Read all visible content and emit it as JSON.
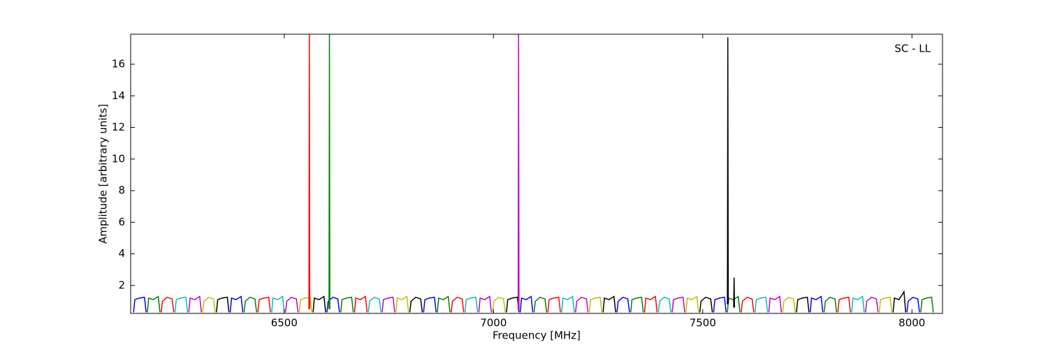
{
  "chart_data": {
    "type": "line",
    "annotation": "SC - LL",
    "xlabel": "Frequency [MHz]",
    "ylabel": "Amplitude [arbitrary units]",
    "xlim": [
      6133,
      8073
    ],
    "ylim": [
      0.23,
      17.9
    ],
    "xticks": [
      6500,
      7000,
      7500,
      8000
    ],
    "yticks": [
      2,
      4,
      6,
      8,
      10,
      12,
      14,
      16
    ],
    "series": [
      {
        "color": "#0000ff",
        "x": [
          6140,
          6143,
          6154,
          6166,
          6170
        ],
        "values": [
          0.3,
          1.1,
          1.2,
          1.25,
          0.3
        ]
      },
      {
        "color": "#008000",
        "x": [
          6173,
          6176,
          6187,
          6199,
          6203
        ],
        "values": [
          0.3,
          1.2,
          1.1,
          1.3,
          0.3
        ]
      },
      {
        "color": "#ff0000",
        "x": [
          6206,
          6209,
          6220,
          6232,
          6236
        ],
        "values": [
          0.3,
          1.0,
          1.25,
          1.15,
          0.3
        ]
      },
      {
        "color": "#00bfbf",
        "x": [
          6239,
          6242,
          6253,
          6265,
          6269
        ],
        "values": [
          0.3,
          1.1,
          1.2,
          1.25,
          0.3
        ]
      },
      {
        "color": "#bf00bf",
        "x": [
          6272,
          6275,
          6286,
          6298,
          6302
        ],
        "values": [
          0.3,
          1.2,
          1.1,
          1.3,
          0.3
        ]
      },
      {
        "color": "#bfbf00",
        "x": [
          6305,
          6308,
          6319,
          6331,
          6335
        ],
        "values": [
          0.3,
          1.0,
          1.25,
          1.15,
          0.3
        ]
      },
      {
        "color": "#000000",
        "x": [
          6338,
          6341,
          6352,
          6364,
          6368
        ],
        "values": [
          0.3,
          1.1,
          1.2,
          1.25,
          0.3
        ]
      },
      {
        "color": "#0000ff",
        "x": [
          6371,
          6374,
          6385,
          6397,
          6401
        ],
        "values": [
          0.3,
          1.2,
          1.1,
          1.3,
          0.3
        ]
      },
      {
        "color": "#008000",
        "x": [
          6404,
          6407,
          6418,
          6430,
          6434
        ],
        "values": [
          0.3,
          1.0,
          1.25,
          1.15,
          0.3
        ]
      },
      {
        "color": "#ff0000",
        "x": [
          6437,
          6440,
          6451,
          6463,
          6467
        ],
        "values": [
          0.3,
          1.1,
          1.2,
          1.25,
          0.3
        ]
      },
      {
        "color": "#00bfbf",
        "x": [
          6470,
          6473,
          6484,
          6496,
          6500
        ],
        "values": [
          0.3,
          1.2,
          1.1,
          1.3,
          0.3
        ]
      },
      {
        "color": "#bf00bf",
        "x": [
          6503,
          6506,
          6517,
          6529,
          6533
        ],
        "values": [
          0.3,
          1.0,
          1.25,
          1.15,
          0.3
        ]
      },
      {
        "color": "#bfbf00",
        "x": [
          6536,
          6539,
          6550,
          6562,
          6566
        ],
        "values": [
          0.3,
          1.1,
          1.2,
          1.25,
          0.3
        ]
      },
      {
        "color": "#000000",
        "x": [
          6569,
          6572,
          6583,
          6595,
          6599
        ],
        "values": [
          0.3,
          1.2,
          1.1,
          1.3,
          0.3
        ]
      },
      {
        "color": "#0000ff",
        "x": [
          6602,
          6605,
          6616,
          6628,
          6632
        ],
        "values": [
          0.3,
          1.0,
          1.25,
          1.15,
          0.3
        ]
      },
      {
        "color": "#008000",
        "x": [
          6635,
          6638,
          6649,
          6661,
          6665
        ],
        "values": [
          0.3,
          1.1,
          1.2,
          1.25,
          0.3
        ]
      },
      {
        "color": "#ff0000",
        "x": [
          6668,
          6671,
          6682,
          6694,
          6698
        ],
        "values": [
          0.3,
          1.2,
          1.1,
          1.3,
          0.3
        ]
      },
      {
        "color": "#00bfbf",
        "x": [
          6701,
          6704,
          6715,
          6727,
          6731
        ],
        "values": [
          0.3,
          1.0,
          1.25,
          1.15,
          0.3
        ]
      },
      {
        "color": "#bf00bf",
        "x": [
          6734,
          6737,
          6748,
          6760,
          6764
        ],
        "values": [
          0.3,
          1.1,
          1.2,
          1.25,
          0.3
        ]
      },
      {
        "color": "#bfbf00",
        "x": [
          6767,
          6770,
          6781,
          6793,
          6797
        ],
        "values": [
          0.3,
          1.2,
          1.1,
          1.3,
          0.3
        ]
      },
      {
        "color": "#000000",
        "x": [
          6800,
          6803,
          6814,
          6826,
          6830
        ],
        "values": [
          0.3,
          1.0,
          1.25,
          1.15,
          0.3
        ]
      },
      {
        "color": "#0000ff",
        "x": [
          6833,
          6836,
          6847,
          6859,
          6863
        ],
        "values": [
          0.3,
          1.1,
          1.2,
          1.25,
          0.3
        ]
      },
      {
        "color": "#008000",
        "x": [
          6866,
          6869,
          6880,
          6892,
          6896
        ],
        "values": [
          0.3,
          1.2,
          1.1,
          1.3,
          0.3
        ]
      },
      {
        "color": "#ff0000",
        "x": [
          6899,
          6902,
          6913,
          6925,
          6929
        ],
        "values": [
          0.3,
          1.0,
          1.25,
          1.15,
          0.3
        ]
      },
      {
        "color": "#00bfbf",
        "x": [
          6932,
          6935,
          6946,
          6958,
          6962
        ],
        "values": [
          0.3,
          1.1,
          1.2,
          1.25,
          0.3
        ]
      },
      {
        "color": "#bf00bf",
        "x": [
          6965,
          6968,
          6979,
          6991,
          6995
        ],
        "values": [
          0.3,
          1.2,
          1.1,
          1.3,
          0.3
        ]
      },
      {
        "color": "#bfbf00",
        "x": [
          6998,
          7001,
          7012,
          7024,
          7028
        ],
        "values": [
          0.3,
          1.0,
          1.25,
          1.15,
          0.3
        ]
      },
      {
        "color": "#000000",
        "x": [
          7031,
          7034,
          7045,
          7057,
          7061
        ],
        "values": [
          0.3,
          1.1,
          1.2,
          1.25,
          0.3
        ]
      },
      {
        "color": "#0000ff",
        "x": [
          7064,
          7067,
          7078,
          7090,
          7094
        ],
        "values": [
          0.3,
          1.2,
          1.1,
          1.3,
          0.3
        ]
      },
      {
        "color": "#008000",
        "x": [
          7097,
          7100,
          7111,
          7123,
          7127
        ],
        "values": [
          0.3,
          1.0,
          1.25,
          1.15,
          0.3
        ]
      },
      {
        "color": "#ff0000",
        "x": [
          7130,
          7133,
          7144,
          7156,
          7160
        ],
        "values": [
          0.3,
          1.1,
          1.2,
          1.25,
          0.3
        ]
      },
      {
        "color": "#00bfbf",
        "x": [
          7163,
          7166,
          7177,
          7189,
          7193
        ],
        "values": [
          0.3,
          1.2,
          1.1,
          1.3,
          0.3
        ]
      },
      {
        "color": "#bf00bf",
        "x": [
          7196,
          7199,
          7210,
          7222,
          7226
        ],
        "values": [
          0.3,
          1.0,
          1.25,
          1.15,
          0.3
        ]
      },
      {
        "color": "#bfbf00",
        "x": [
          7229,
          7232,
          7243,
          7255,
          7259
        ],
        "values": [
          0.3,
          1.1,
          1.2,
          1.25,
          0.3
        ]
      },
      {
        "color": "#000000",
        "x": [
          7262,
          7265,
          7276,
          7288,
          7292
        ],
        "values": [
          0.3,
          1.2,
          1.1,
          1.3,
          0.3
        ]
      },
      {
        "color": "#0000ff",
        "x": [
          7295,
          7298,
          7309,
          7321,
          7325
        ],
        "values": [
          0.3,
          1.0,
          1.25,
          1.15,
          0.3
        ]
      },
      {
        "color": "#008000",
        "x": [
          7328,
          7331,
          7342,
          7354,
          7358
        ],
        "values": [
          0.3,
          1.1,
          1.2,
          1.25,
          0.3
        ]
      },
      {
        "color": "#ff0000",
        "x": [
          7361,
          7364,
          7375,
          7387,
          7391
        ],
        "values": [
          0.3,
          1.2,
          1.1,
          1.3,
          0.3
        ]
      },
      {
        "color": "#00bfbf",
        "x": [
          7394,
          7397,
          7408,
          7420,
          7424
        ],
        "values": [
          0.3,
          1.0,
          1.25,
          1.15,
          0.3
        ]
      },
      {
        "color": "#bf00bf",
        "x": [
          7427,
          7430,
          7441,
          7453,
          7457
        ],
        "values": [
          0.3,
          1.1,
          1.2,
          1.25,
          0.3
        ]
      },
      {
        "color": "#bfbf00",
        "x": [
          7460,
          7463,
          7474,
          7486,
          7490
        ],
        "values": [
          0.3,
          1.2,
          1.1,
          1.3,
          0.3
        ]
      },
      {
        "color": "#000000",
        "x": [
          7493,
          7496,
          7507,
          7519,
          7523
        ],
        "values": [
          0.3,
          1.0,
          1.25,
          1.15,
          0.3
        ]
      },
      {
        "color": "#0000ff",
        "x": [
          7526,
          7529,
          7540,
          7552,
          7556
        ],
        "values": [
          0.3,
          1.1,
          1.2,
          1.25,
          0.3
        ]
      },
      {
        "color": "#008000",
        "x": [
          7559,
          7562,
          7573,
          7585,
          7589
        ],
        "values": [
          0.3,
          1.2,
          1.1,
          1.3,
          0.3
        ]
      },
      {
        "color": "#ff0000",
        "x": [
          7592,
          7595,
          7606,
          7618,
          7622
        ],
        "values": [
          0.3,
          1.0,
          1.25,
          1.15,
          0.3
        ]
      },
      {
        "color": "#00bfbf",
        "x": [
          7625,
          7628,
          7639,
          7651,
          7655
        ],
        "values": [
          0.3,
          1.1,
          1.2,
          1.25,
          0.3
        ]
      },
      {
        "color": "#bf00bf",
        "x": [
          7658,
          7661,
          7672,
          7684,
          7688
        ],
        "values": [
          0.3,
          1.2,
          1.1,
          1.3,
          0.3
        ]
      },
      {
        "color": "#bfbf00",
        "x": [
          7691,
          7694,
          7705,
          7717,
          7721
        ],
        "values": [
          0.3,
          1.0,
          1.25,
          1.15,
          0.3
        ]
      },
      {
        "color": "#000000",
        "x": [
          7724,
          7727,
          7738,
          7750,
          7754
        ],
        "values": [
          0.3,
          1.1,
          1.2,
          1.25,
          0.3
        ]
      },
      {
        "color": "#0000ff",
        "x": [
          7757,
          7760,
          7771,
          7783,
          7787
        ],
        "values": [
          0.3,
          1.2,
          1.1,
          1.3,
          0.3
        ]
      },
      {
        "color": "#008000",
        "x": [
          7790,
          7793,
          7804,
          7816,
          7820
        ],
        "values": [
          0.3,
          1.0,
          1.25,
          1.15,
          0.3
        ]
      },
      {
        "color": "#ff0000",
        "x": [
          7823,
          7826,
          7837,
          7849,
          7853
        ],
        "values": [
          0.3,
          1.1,
          1.2,
          1.25,
          0.3
        ]
      },
      {
        "color": "#00bfbf",
        "x": [
          7856,
          7859,
          7870,
          7882,
          7886
        ],
        "values": [
          0.3,
          1.2,
          1.1,
          1.3,
          0.3
        ]
      },
      {
        "color": "#bf00bf",
        "x": [
          7889,
          7892,
          7903,
          7915,
          7919
        ],
        "values": [
          0.3,
          1.0,
          1.25,
          1.15,
          0.3
        ]
      },
      {
        "color": "#bfbf00",
        "x": [
          7922,
          7925,
          7936,
          7948,
          7952
        ],
        "values": [
          0.3,
          1.1,
          1.2,
          1.25,
          0.3
        ]
      },
      {
        "color": "#000000",
        "x": [
          7955,
          7958,
          7969,
          7981,
          7985
        ],
        "values": [
          0.3,
          1.2,
          1.1,
          1.6,
          0.3
        ]
      },
      {
        "color": "#0000ff",
        "x": [
          7988,
          7991,
          8002,
          8014,
          8018
        ],
        "values": [
          0.3,
          1.0,
          1.25,
          1.15,
          0.3
        ]
      },
      {
        "color": "#008000",
        "x": [
          8021,
          8024,
          8035,
          8047,
          8051
        ],
        "values": [
          0.3,
          1.1,
          1.2,
          1.25,
          0.3
        ]
      },
      {
        "color": "#ff0000",
        "x": [
          6559,
          6560,
          6561
        ],
        "values": [
          0.5,
          17.9,
          0.5
        ]
      },
      {
        "color": "#008000",
        "x": [
          6607,
          6608,
          6609
        ],
        "values": [
          0.5,
          17.9,
          0.5
        ]
      },
      {
        "color": "#bf00bf",
        "x": [
          7059,
          7060,
          7061
        ],
        "values": [
          0.5,
          17.9,
          0.5
        ]
      },
      {
        "color": "#000000",
        "x": [
          7559,
          7560,
          7561
        ],
        "values": [
          0.8,
          17.7,
          0.8
        ]
      },
      {
        "color": "#000000",
        "x": [
          7574,
          7575,
          7576
        ],
        "values": [
          0.6,
          2.5,
          0.6
        ]
      }
    ]
  }
}
